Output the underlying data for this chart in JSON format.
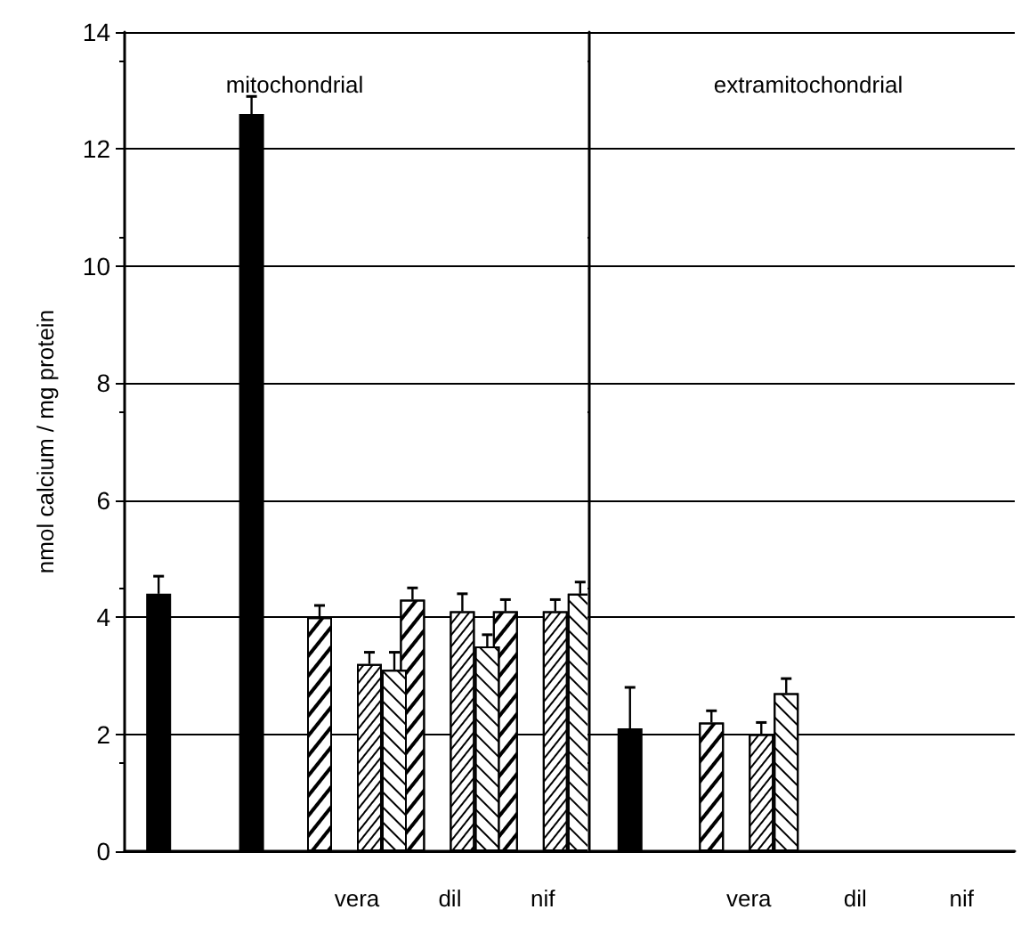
{
  "chart_data": [
    {
      "type": "bar",
      "title": "mitochondrial",
      "ylabel": "nmol calcium / mg protein",
      "categories": [
        null,
        null,
        "vera",
        "dil",
        "nif"
      ],
      "ylim": [
        0,
        14
      ],
      "yticks": [
        0,
        2,
        4,
        6,
        8,
        10,
        12,
        14
      ],
      "grid": "y",
      "series": [
        {
          "color": "#ffffff",
          "values": [
            null,
            null,
            4.0,
            4.3,
            4.1
          ],
          "errors": [
            null,
            null,
            [
              4.0,
              4.2
            ],
            [
              4.3,
              4.5
            ],
            [
              4.1,
              4.3
            ]
          ]
        },
        {
          "color": "#000000",
          "values": [
            4.4,
            12.6,
            null,
            null,
            null
          ],
          "errors": [
            [
              4.4,
              4.7
            ],
            [
              12.6,
              12.9
            ],
            null,
            null,
            null
          ]
        },
        {
          "color": "#ffffff",
          "values": [
            null,
            null,
            3.2,
            4.1,
            4.1
          ],
          "errors": [
            null,
            null,
            [
              3.2,
              3.4
            ],
            [
              4.1,
              4.4
            ],
            [
              4.1,
              4.3
            ]
          ]
        },
        {
          "color": "#ffffff",
          "values": [
            null,
            null,
            3.1,
            3.5,
            4.4
          ],
          "errors": [
            null,
            null,
            [
              3.1,
              3.4
            ],
            [
              3.5,
              3.7
            ],
            [
              4.4,
              4.6
            ]
          ]
        }
      ]
    },
    {
      "type": "bar",
      "title": "extramitochondrial",
      "categories": [
        null,
        "vera",
        "dil",
        "nif"
      ],
      "ylim": [
        0,
        14
      ],
      "yticks": [
        0,
        2,
        4,
        6,
        8,
        10,
        12,
        14
      ],
      "grid": "y",
      "tick_labels": "x",
      "series": [
        {
          "color": "#ffffff",
          "values": [
            null,
            2.2,
            null,
            null
          ],
          "errors": [
            null,
            [
              2.2,
              2.4
            ],
            null,
            null
          ]
        },
        {
          "color": "#000000",
          "values": [
            2.1,
            null,
            null,
            null
          ],
          "errors": [
            [
              2.1,
              2.8
            ],
            null,
            null,
            null
          ]
        },
        {
          "color": "#ffffff",
          "values": [
            null,
            2.0,
            null,
            null
          ],
          "errors": [
            null,
            [
              2.0,
              2.2
            ],
            null,
            null
          ]
        },
        {
          "color": "#ffffff",
          "values": [
            null,
            2.7,
            null,
            null
          ],
          "errors": [
            null,
            [
              2.7,
              2.95
            ],
            null,
            null
          ]
        }
      ]
    }
  ]
}
